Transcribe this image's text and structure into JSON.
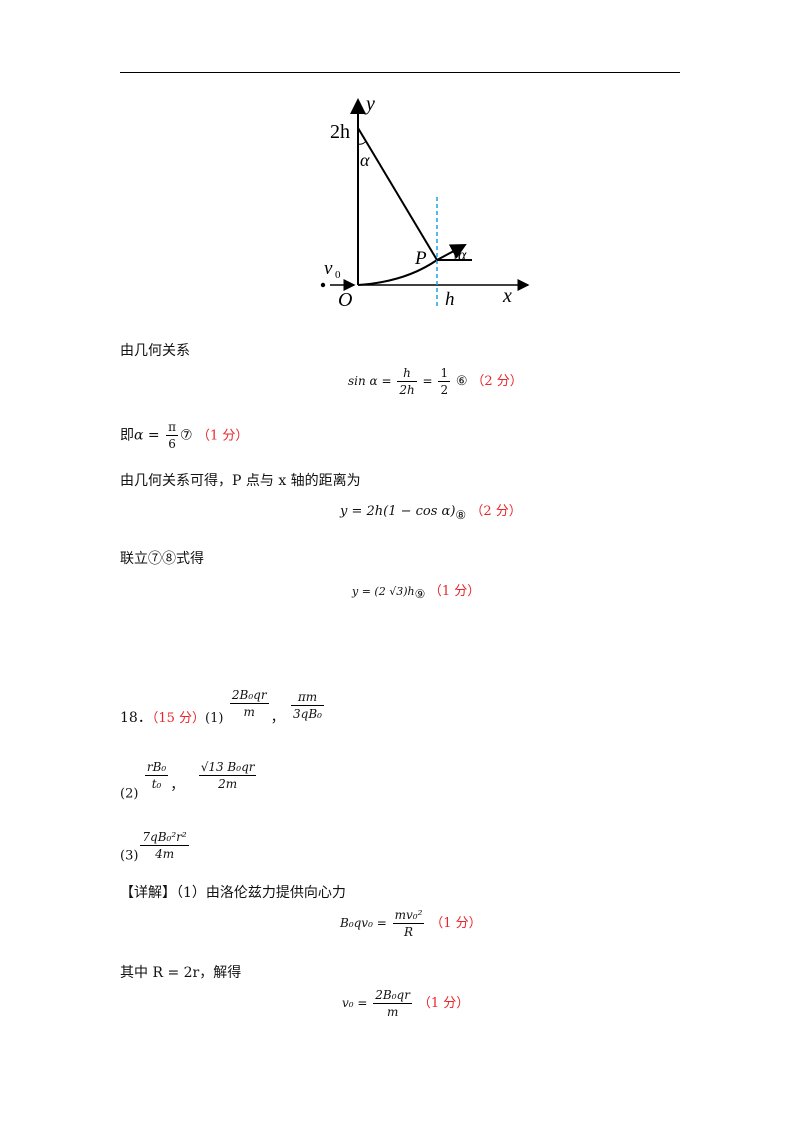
{
  "diagram": {
    "label_y": "y",
    "label_x": "x",
    "label_2h": "2h",
    "label_alpha_top": "α",
    "label_P": "P",
    "label_alpha_right": "α",
    "label_v0": "v",
    "label_v0_sub": "0",
    "label_O": "O",
    "label_h": "h",
    "line_color": "#000000",
    "dash_color": "#1aa3e8"
  },
  "lines": {
    "l1": "由几何关系",
    "eq1_lhs": "sin α =",
    "eq1_f1_num": "h",
    "eq1_f1_den": "2h",
    "eq1_eq": "=",
    "eq1_f2_num": "1",
    "eq1_f2_den": "2",
    "eq1_mark": "⑥",
    "eq1_score": "（2 分）",
    "l2_prefix": "即",
    "l2_var": "α =",
    "l2_num": "π",
    "l2_den": "6",
    "l2_mark": "⑦",
    "l2_score": "（1 分）",
    "l3": "由几何关系可得，P 点与 x 轴的距离为",
    "eq3": "y = 2h(1 − cos α)",
    "eq3_mark": "⑧",
    "eq3_score": "（2 分）",
    "l4": "联立⑦⑧式得",
    "eq4": "y = (2   √3)h",
    "eq4_mark": "⑨",
    "eq4_score": "（1 分）"
  },
  "q18": {
    "number": "18．",
    "score": "（15 分）",
    "p1_label": "(1)",
    "p1_f1_num": "2B₀qr",
    "p1_f1_den": "m",
    "p1_sep": "，",
    "p1_f2_num": "πm",
    "p1_f2_den": "3qB₀",
    "p2_label": "(2)",
    "p2_f1_num": "rB₀",
    "p2_f1_den": "t₀",
    "p2_sep": "，",
    "p2_f2_num": "√13 B₀qr",
    "p2_f2_den": "2m",
    "p3_label": "(3)",
    "p3_f_num": "7qB₀²r²",
    "p3_f_den": "4m",
    "detail": "【详解】（1）由洛伦兹力提供向心力",
    "eq5_lhs": "B₀qv₀ =",
    "eq5_num": "mv₀²",
    "eq5_den": "R",
    "eq5_score": "（1 分）",
    "l5": "其中 R = 2r，解得",
    "eq6_lhs": "v₀ =",
    "eq6_num": "2B₀qr",
    "eq6_den": "m",
    "eq6_score": "（1 分）"
  }
}
